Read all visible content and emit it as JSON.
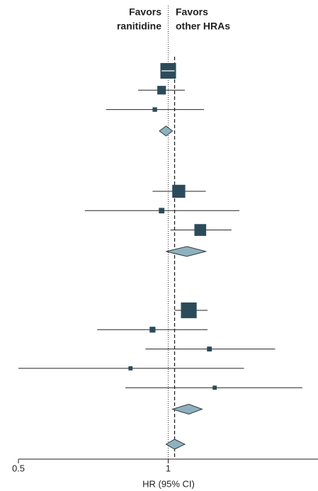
{
  "chart_data": {
    "type": "forest",
    "left_label": [
      "Favors",
      "ranitidine"
    ],
    "right_label": [
      "Favors",
      "other HRAs"
    ],
    "xlabel": "HR (95% CI)",
    "log_scale": true,
    "xlim": [
      0.5,
      2
    ],
    "xticks": [
      0.5,
      1
    ],
    "null_value": 1,
    "square_color": "#2b4b5b",
    "diamond_color": "#8fb1bd",
    "groups": [
      {
        "rows": [
          {
            "hr": 1.0,
            "lower": 0.97,
            "upper": 1.03,
            "weight": 72
          },
          {
            "hr": 0.97,
            "lower": 0.87,
            "upper": 1.08,
            "weight": 22
          },
          {
            "hr": 0.94,
            "lower": 0.75,
            "upper": 1.18,
            "weight": 6
          }
        ],
        "pooled": {
          "hr": 0.99,
          "lower": 0.96,
          "upper": 1.02
        }
      },
      {
        "rows": [
          {
            "hr": 1.05,
            "lower": 0.93,
            "upper": 1.19,
            "weight": 50
          },
          {
            "hr": 0.97,
            "lower": 0.68,
            "upper": 1.39,
            "weight": 9
          },
          {
            "hr": 1.16,
            "lower": 1.01,
            "upper": 1.34,
            "weight": 41
          }
        ],
        "pooled": {
          "hr": 1.09,
          "lower": 0.99,
          "upper": 1.19
        }
      },
      {
        "rows": [
          {
            "hr": 1.1,
            "lower": 1.03,
            "upper": 1.2,
            "weight": 73
          },
          {
            "hr": 0.93,
            "lower": 0.72,
            "upper": 1.2,
            "weight": 10
          },
          {
            "hr": 1.21,
            "lower": 0.9,
            "upper": 1.64,
            "weight": 7
          },
          {
            "hr": 0.84,
            "lower": 0.5,
            "upper": 1.42,
            "weight": 5
          },
          {
            "hr": 1.24,
            "lower": 0.82,
            "upper": 1.86,
            "weight": 5
          }
        ],
        "pooled": {
          "hr": 1.1,
          "lower": 1.02,
          "upper": 1.17
        }
      }
    ],
    "overall": {
      "hr": 1.03,
      "lower": 0.99,
      "upper": 1.08
    }
  }
}
